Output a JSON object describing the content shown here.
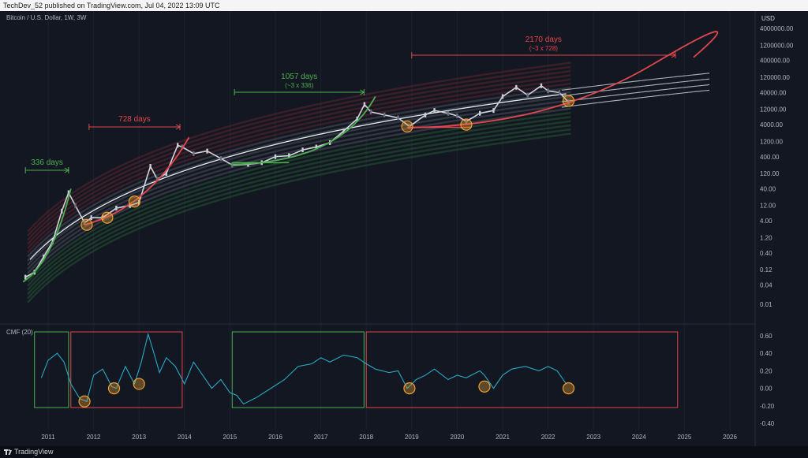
{
  "header": {
    "publish_text": "TechDev_52 published on TradingView.com, Jul 04, 2022 13:09 UTC"
  },
  "chart_header": {
    "symbol": "Bitcoin / U.S. Dollar, 1W, 3W",
    "currency": "USD"
  },
  "indicator": {
    "label": "CMF (20)"
  },
  "footer": {
    "brand": "TradingView"
  },
  "colors": {
    "background": "#131722",
    "green": "#4caf50",
    "red": "#e0474c",
    "cmf_line": "#2aa8c4",
    "circle": "#f0a030",
    "price": "#d1d4dc"
  },
  "chart_data": [
    {
      "type": "line",
      "title": "Bitcoin / U.S. Dollar, 1W, 3W",
      "scale": "log",
      "x_ticks": [
        "2011",
        "2012",
        "2013",
        "2014",
        "2015",
        "2016",
        "2017",
        "2018",
        "2019",
        "2020",
        "2021",
        "2022",
        "2023",
        "2024",
        "2025",
        "2026"
      ],
      "y_ticks": [
        "4000000.00",
        "1200000.00",
        "400000.00",
        "120000.00",
        "40000.00",
        "12000.00",
        "4000.00",
        "1200.00",
        "400.00",
        "120.00",
        "40.00",
        "12.00",
        "4.00",
        "1.20",
        "0.40",
        "0.12",
        "0.04",
        "0.01"
      ],
      "ylim": [
        0.003,
        6000000
      ],
      "series": [
        {
          "x": [
            2010.5,
            2010.7,
            2010.9,
            2011.1,
            2011.3,
            2011.45,
            2011.6,
            2011.8,
            2011.95,
            2012.2,
            2012.5,
            2012.8,
            2013.0,
            2013.25,
            2013.4,
            2013.6,
            2013.85,
            2013.95,
            2014.2,
            2014.5,
            2014.8,
            2015.05,
            2015.4,
            2015.7,
            2016.0,
            2016.3,
            2016.6,
            2016.9,
            2017.2,
            2017.5,
            2017.8,
            2017.96,
            2018.1,
            2018.4,
            2018.7,
            2018.95,
            2019.3,
            2019.5,
            2019.8,
            2020.0,
            2020.2,
            2020.5,
            2020.8,
            2021.0,
            2021.3,
            2021.55,
            2021.85,
            2022.0,
            2022.25,
            2022.45
          ],
          "values": [
            0.07,
            0.1,
            0.3,
            0.9,
            8,
            30,
            12,
            3.5,
            5,
            5,
            10,
            12,
            15,
            200,
            80,
            120,
            900,
            800,
            500,
            600,
            350,
            220,
            230,
            260,
            400,
            430,
            650,
            800,
            1100,
            2500,
            6000,
            17000,
            10000,
            8000,
            6500,
            3500,
            8000,
            11000,
            9000,
            7500,
            5000,
            9000,
            11000,
            30000,
            58000,
            33000,
            65000,
            45000,
            40000,
            20000
          ]
        }
      ],
      "annotations": [
        {
          "label": "336 days",
          "color": "green"
        },
        {
          "label": "728 days",
          "color": "red"
        },
        {
          "label": "1057 days",
          "sub": "(~3 x 336)",
          "color": "green"
        },
        {
          "label": "2170 days",
          "sub": "(~3 x 728)",
          "color": "red"
        }
      ]
    },
    {
      "type": "line",
      "title": "CMF (20)",
      "y_ticks": [
        "0.60",
        "0.40",
        "0.20",
        "0.00",
        "-0.20",
        "-0.40"
      ],
      "ylim": [
        -0.42,
        0.62
      ],
      "series": [
        {
          "x": [
            2010.85,
            2011.0,
            2011.2,
            2011.35,
            2011.5,
            2011.7,
            2011.85,
            2012.0,
            2012.2,
            2012.4,
            2012.5,
            2012.7,
            2012.9,
            2013.05,
            2013.2,
            2013.3,
            2013.45,
            2013.6,
            2013.8,
            2014.0,
            2014.2,
            2014.4,
            2014.6,
            2014.8,
            2015.0,
            2015.15,
            2015.3,
            2015.6,
            2015.9,
            2016.2,
            2016.5,
            2016.8,
            2017.0,
            2017.2,
            2017.5,
            2017.8,
            2018.0,
            2018.2,
            2018.5,
            2018.7,
            2018.9,
            2019.1,
            2019.3,
            2019.5,
            2019.8,
            2020.0,
            2020.2,
            2020.5,
            2020.6,
            2020.8,
            2021.0,
            2021.2,
            2021.5,
            2021.8,
            2022.0,
            2022.2,
            2022.4
          ],
          "values": [
            0.12,
            0.32,
            0.4,
            0.3,
            0.05,
            -0.12,
            -0.15,
            0.15,
            0.22,
            0.02,
            0.0,
            0.25,
            0.05,
            0.3,
            0.62,
            0.45,
            0.18,
            0.35,
            0.25,
            0.05,
            0.3,
            0.15,
            0.0,
            0.1,
            -0.05,
            -0.08,
            -0.18,
            -0.1,
            0.0,
            0.1,
            0.25,
            0.28,
            0.35,
            0.3,
            0.38,
            0.35,
            0.28,
            0.22,
            0.18,
            0.2,
            0.0,
            0.1,
            0.15,
            0.22,
            0.1,
            0.15,
            0.12,
            0.2,
            0.15,
            0.0,
            0.15,
            0.22,
            0.25,
            0.2,
            0.25,
            0.2,
            0.05
          ]
        }
      ]
    }
  ]
}
